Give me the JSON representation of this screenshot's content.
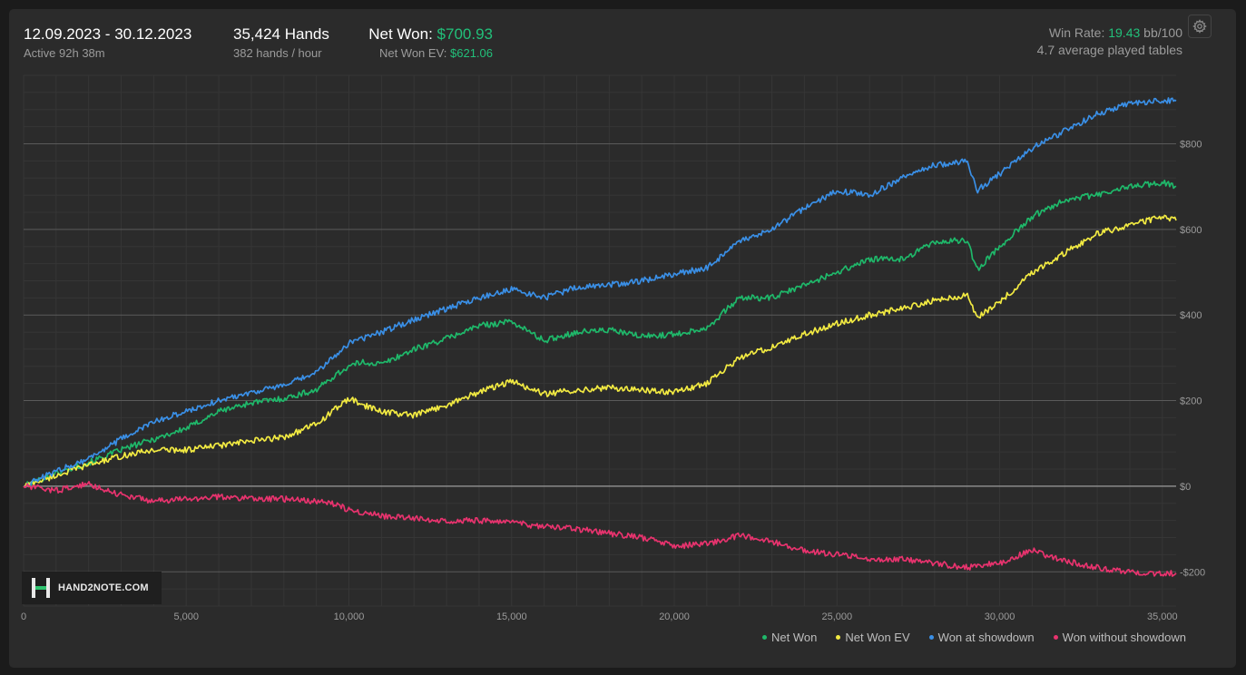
{
  "header": {
    "date_range": "12.09.2023 - 30.12.2023",
    "active_time": "Active 92h 38m",
    "hands": "35,424 Hands",
    "hands_per_hour": "382 hands / hour",
    "net_won_label": "Net Won:",
    "net_won_value": "$700.93",
    "net_won_ev_label": "Net Won  EV:",
    "net_won_ev_value": "$621.06",
    "win_rate_label": "Win Rate:",
    "win_rate_value": "19.43",
    "win_rate_unit": "bb/100",
    "avg_tables": "4.7 average played tables",
    "settings_icon": "gear-icon"
  },
  "logo": {
    "text": "HAND2NOTE.COM"
  },
  "colors": {
    "net_won": "#1fb86a",
    "net_won_ev": "#f2ea42",
    "won_at_showdown": "#3a8fe6",
    "won_without_showdown": "#e8336e",
    "grid_major": "#5a5a5a",
    "grid_minor": "#363636",
    "zero_line": "#8a8a8a"
  },
  "chart_data": {
    "type": "line",
    "xlabel": "",
    "ylabel": "",
    "xlim": [
      0,
      35424
    ],
    "ylim": [
      -280,
      960
    ],
    "x_ticks": [
      0,
      5000,
      10000,
      15000,
      20000,
      25000,
      30000,
      35000
    ],
    "x_tick_labels": [
      "0",
      "5,000",
      "10,000",
      "15,000",
      "20,000",
      "25,000",
      "30,000",
      "35,000"
    ],
    "y_ticks": [
      -200,
      0,
      200,
      400,
      600,
      800
    ],
    "y_tick_labels": [
      "-$200",
      "$0",
      "$200",
      "$400",
      "$600",
      "$800"
    ],
    "grid": true,
    "legend_position": "bottom-right",
    "series": [
      {
        "name": "Net Won",
        "x": [
          0,
          1000,
          2000,
          3000,
          4000,
          5000,
          6000,
          7000,
          8000,
          9000,
          9500,
          10000,
          10400,
          11000,
          12000,
          13000,
          14000,
          15000,
          16000,
          17000,
          18000,
          19000,
          20000,
          21000,
          22000,
          23000,
          24000,
          25000,
          26000,
          27000,
          28000,
          29000,
          29300,
          30000,
          31000,
          32000,
          33000,
          34000,
          35000,
          35424
        ],
        "values": [
          0,
          30,
          55,
          85,
          110,
          135,
          175,
          195,
          205,
          225,
          255,
          280,
          290,
          285,
          320,
          345,
          375,
          385,
          340,
          360,
          365,
          350,
          355,
          370,
          440,
          440,
          470,
          500,
          530,
          530,
          570,
          575,
          505,
          560,
          630,
          670,
          680,
          700,
          710,
          701
        ]
      },
      {
        "name": "Net Won  EV",
        "x": [
          0,
          1000,
          2000,
          3000,
          4000,
          5000,
          6000,
          7000,
          8000,
          9000,
          9500,
          10000,
          10400,
          11000,
          12000,
          13000,
          14000,
          15000,
          16000,
          17000,
          18000,
          19000,
          20000,
          21000,
          22000,
          23000,
          24000,
          25000,
          26000,
          27000,
          28000,
          29000,
          29300,
          30000,
          31000,
          32000,
          33000,
          34000,
          35000,
          35424
        ],
        "values": [
          0,
          25,
          50,
          70,
          85,
          85,
          95,
          105,
          115,
          145,
          175,
          205,
          190,
          175,
          165,
          190,
          220,
          245,
          215,
          225,
          230,
          225,
          220,
          240,
          300,
          325,
          355,
          380,
          400,
          415,
          435,
          445,
          395,
          430,
          500,
          545,
          590,
          610,
          630,
          621
        ]
      },
      {
        "name": "Won at showdown",
        "x": [
          0,
          1000,
          2000,
          3000,
          4000,
          5000,
          6000,
          7000,
          8000,
          9000,
          9500,
          10000,
          10400,
          11000,
          12000,
          13000,
          14000,
          15000,
          16000,
          17000,
          18000,
          19000,
          20000,
          21000,
          22000,
          23000,
          24000,
          25000,
          26000,
          27000,
          28000,
          29000,
          29300,
          30000,
          31000,
          32000,
          33000,
          34000,
          35000,
          35424
        ],
        "values": [
          0,
          35,
          65,
          110,
          150,
          175,
          200,
          220,
          235,
          265,
          300,
          335,
          345,
          360,
          390,
          415,
          440,
          460,
          440,
          465,
          470,
          480,
          495,
          510,
          570,
          600,
          650,
          690,
          680,
          720,
          750,
          760,
          690,
          730,
          790,
          830,
          870,
          895,
          900,
          900
        ]
      },
      {
        "name": "Won without showdown",
        "x": [
          0,
          1000,
          2000,
          3000,
          4000,
          5000,
          6000,
          7000,
          8000,
          9000,
          9500,
          10000,
          10400,
          11000,
          12000,
          13000,
          14000,
          15000,
          16000,
          17000,
          18000,
          19000,
          20000,
          21000,
          22000,
          23000,
          24000,
          25000,
          26000,
          27000,
          28000,
          29000,
          29300,
          30000,
          31000,
          32000,
          33000,
          34000,
          35000,
          35424
        ],
        "values": [
          0,
          -10,
          5,
          -20,
          -35,
          -30,
          -25,
          -28,
          -30,
          -35,
          -40,
          -55,
          -60,
          -70,
          -75,
          -80,
          -80,
          -85,
          -95,
          -100,
          -110,
          -120,
          -140,
          -135,
          -115,
          -130,
          -150,
          -160,
          -170,
          -170,
          -180,
          -190,
          -185,
          -180,
          -150,
          -175,
          -190,
          -200,
          -205,
          -203
        ]
      }
    ]
  }
}
